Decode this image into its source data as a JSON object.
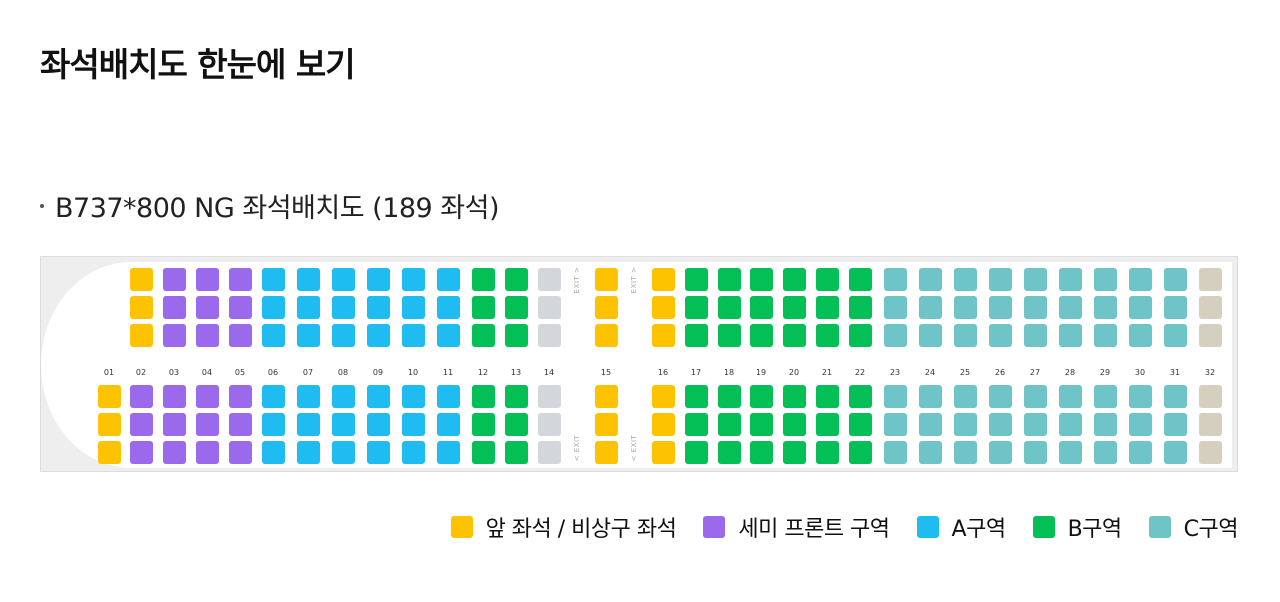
{
  "page": {
    "title": "좌석배치도 한눈에 보기",
    "subtitle": "B737*800 NG 좌석배치도 (189 좌석)"
  },
  "zones": {
    "front": "#fdc300",
    "semi": "#9b69ec",
    "a": "#1ebcf0",
    "b": "#04bf55",
    "c": "#6ec4c7",
    "gray": "#d3d6da",
    "beige": "#d4cfbf"
  },
  "seatmap": {
    "exit_text": "EXIT",
    "rows": [
      {
        "label": "01",
        "upper": null,
        "lower": "front"
      },
      {
        "label": "02",
        "upper": "front",
        "lower": "semi"
      },
      {
        "label": "03",
        "upper": "semi",
        "lower": "semi"
      },
      {
        "label": "04",
        "upper": "semi",
        "lower": "semi"
      },
      {
        "label": "05",
        "upper": "semi",
        "lower": "semi"
      },
      {
        "label": "06",
        "upper": "a",
        "lower": "a"
      },
      {
        "label": "07",
        "upper": "a",
        "lower": "a"
      },
      {
        "label": "08",
        "upper": "a",
        "lower": "a"
      },
      {
        "label": "09",
        "upper": "a",
        "lower": "a"
      },
      {
        "label": "10",
        "upper": "a",
        "lower": "a"
      },
      {
        "label": "11",
        "upper": "a",
        "lower": "a"
      },
      {
        "label": "12",
        "upper": "b",
        "lower": "b"
      },
      {
        "label": "13",
        "upper": "b",
        "lower": "b"
      },
      {
        "label": "14",
        "upper": "gray",
        "lower": "gray"
      },
      {
        "label": "15",
        "upper": "front",
        "lower": "front"
      },
      {
        "label": "16",
        "upper": "front",
        "lower": "front"
      },
      {
        "label": "17",
        "upper": "b",
        "lower": "b"
      },
      {
        "label": "18",
        "upper": "b",
        "lower": "b"
      },
      {
        "label": "19",
        "upper": "b",
        "lower": "b"
      },
      {
        "label": "20",
        "upper": "b",
        "lower": "b"
      },
      {
        "label": "21",
        "upper": "b",
        "lower": "b"
      },
      {
        "label": "22",
        "upper": "b",
        "lower": "b"
      },
      {
        "label": "23",
        "upper": "c",
        "lower": "c"
      },
      {
        "label": "24",
        "upper": "c",
        "lower": "c"
      },
      {
        "label": "25",
        "upper": "c",
        "lower": "c"
      },
      {
        "label": "26",
        "upper": "c",
        "lower": "c"
      },
      {
        "label": "27",
        "upper": "c",
        "lower": "c"
      },
      {
        "label": "28",
        "upper": "c",
        "lower": "c"
      },
      {
        "label": "29",
        "upper": "c",
        "lower": "c"
      },
      {
        "label": "30",
        "upper": "c",
        "lower": "c"
      },
      {
        "label": "31",
        "upper": "c",
        "lower": "c"
      },
      {
        "label": "32",
        "upper": "beige",
        "lower": "beige"
      }
    ]
  },
  "legend": [
    {
      "zone": "front",
      "label": "앞 좌석 / 비상구 좌석"
    },
    {
      "zone": "semi",
      "label": "세미 프론트 구역"
    },
    {
      "zone": "a",
      "label": "A구역"
    },
    {
      "zone": "b",
      "label": "B구역"
    },
    {
      "zone": "c",
      "label": "C구역"
    }
  ]
}
